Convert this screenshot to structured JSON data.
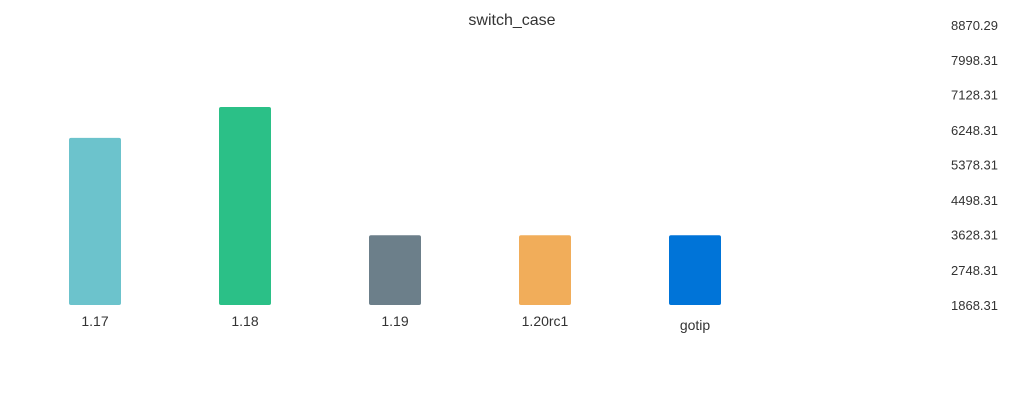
{
  "chart_data": {
    "type": "bar",
    "title": "switch_case",
    "xlabel": "",
    "ylabel": "",
    "categories": [
      "1.17",
      "1.18",
      "1.19",
      "1.20rc1",
      "gotip"
    ],
    "values": [
      6048,
      6820,
      3613,
      3613,
      3613
    ],
    "colors": [
      "#6cc3cc",
      "#2bc087",
      "#6c7f8a",
      "#f1ad5a",
      "#0074d8"
    ],
    "ylim": [
      1868.31,
      8870.29
    ],
    "yticks": [
      "8870.29",
      "7998.31",
      "7128.31",
      "6248.31",
      "5378.31",
      "4498.31",
      "3628.31",
      "2748.31",
      "1868.31"
    ],
    "ytick_values": [
      8870.29,
      7998.31,
      7128.31,
      6248.31,
      5378.31,
      4498.31,
      3628.31,
      2748.31,
      1868.31
    ],
    "y_axis_position": "right",
    "grid": false,
    "legend": "none"
  }
}
